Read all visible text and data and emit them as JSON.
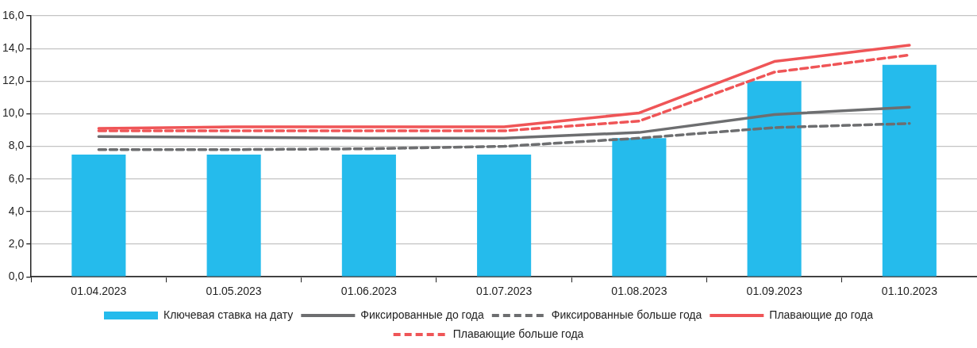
{
  "chart_data": {
    "type": "bar",
    "categories": [
      "01.04.2023",
      "01.05.2023",
      "01.06.2023",
      "01.07.2023",
      "01.08.2023",
      "01.09.2023",
      "01.10.2023"
    ],
    "series": [
      {
        "name": "Ключевая ставка на дату",
        "color": "#25bbec",
        "values": [
          7.5,
          7.5,
          7.5,
          7.5,
          8.5,
          12,
          13
        ]
      },
      {
        "name": "Фиксированные до года",
        "type": "line",
        "line_style": "solid",
        "color": "#6d6e70",
        "values": [
          8.6,
          8.55,
          8.5,
          8.5,
          8.85,
          9.95,
          10.4
        ]
      },
      {
        "name": "Фиксированные больше года",
        "type": "line",
        "line_style": "dashed",
        "color": "#6d6e70",
        "values": [
          7.8,
          7.8,
          7.85,
          8.0,
          8.5,
          9.15,
          9.4
        ]
      },
      {
        "name": "Плавающие до года",
        "type": "line",
        "line_style": "solid",
        "color": "#ef5557",
        "values": [
          9.1,
          9.2,
          9.2,
          9.2,
          10.05,
          13.2,
          14.2
        ]
      },
      {
        "name": "Плавающие больше года",
        "type": "line",
        "line_style": "dashed",
        "color": "#ef5557",
        "values": [
          8.95,
          8.95,
          8.95,
          8.95,
          9.55,
          12.55,
          13.6
        ]
      }
    ],
    "ylim": [
      0,
      16
    ],
    "yticks": [
      {
        "value": 0,
        "label": "0,0"
      },
      {
        "value": 2,
        "label": "2,0"
      },
      {
        "value": 4,
        "label": "4,0"
      },
      {
        "value": 6,
        "label": "6,0"
      },
      {
        "value": 8,
        "label": "8,0"
      },
      {
        "value": 10,
        "label": "10,0"
      },
      {
        "value": 12,
        "label": "12,0"
      },
      {
        "value": 14,
        "label": "14,0"
      },
      {
        "value": 16,
        "label": "16,0"
      }
    ],
    "grid": "y",
    "legend": "bottom",
    "marker": "none"
  }
}
